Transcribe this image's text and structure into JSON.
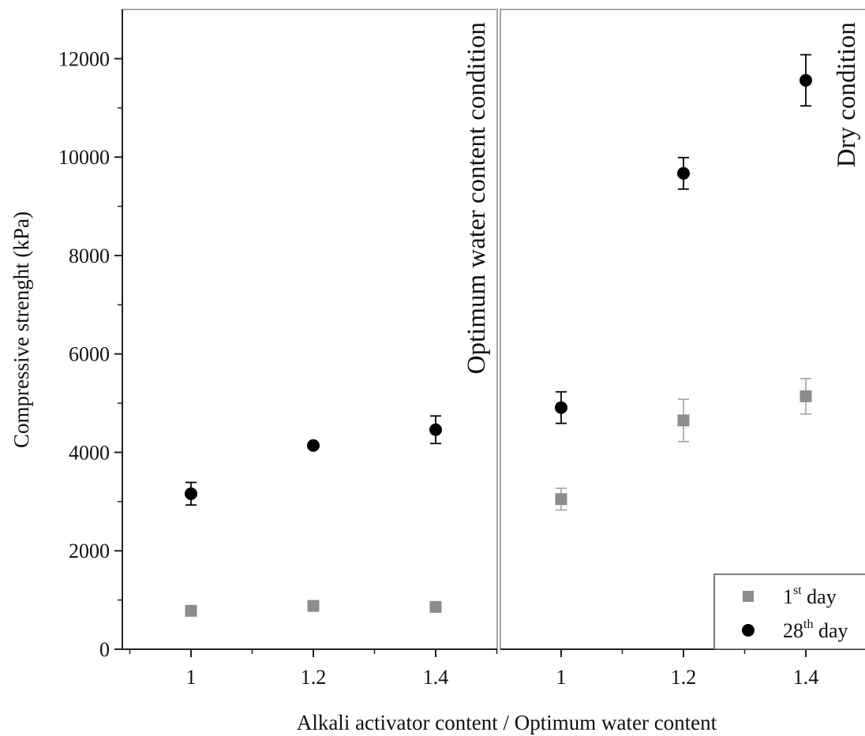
{
  "chart_data": {
    "type": "scatter",
    "title": "",
    "ylabel": "Compressive strenght (kPa)",
    "xlabel": "Alkali activator content / Optimum water content",
    "ylim": [
      0,
      13000
    ],
    "yticks": [
      0,
      2000,
      4000,
      6000,
      8000,
      10000,
      12000
    ],
    "grid": false,
    "legend_position": "bottom-right",
    "panels": [
      {
        "label": "Optimum water content condition",
        "categories": [
          "1",
          "1.2",
          "1.4"
        ],
        "series": [
          {
            "name": "1st day",
            "values": [
              780,
              880,
              860
            ],
            "errors": [
              0,
              0,
              0
            ]
          },
          {
            "name": "28th day",
            "values": [
              3160,
              4140,
              4460
            ],
            "errors": [
              230,
              0,
              280
            ]
          }
        ]
      },
      {
        "label": "Dry condition",
        "categories": [
          "1",
          "1.2",
          "1.4"
        ],
        "series": [
          {
            "name": "1st day",
            "values": [
              3050,
              4650,
              5140
            ],
            "errors": [
              220,
              430,
              360
            ]
          },
          {
            "name": "28th day",
            "values": [
              4910,
              9670,
              11560
            ],
            "errors": [
              320,
              320,
              520
            ]
          }
        ]
      }
    ],
    "legend": [
      {
        "base": "1",
        "sup": "st",
        "suffix": " day",
        "marker": "square",
        "color": "#8c8c8c"
      },
      {
        "base": "28",
        "sup": "th",
        "suffix": " day",
        "marker": "circle",
        "color": "#000000"
      }
    ],
    "colors": {
      "day1": "#8c8c8c",
      "day1_err": "#aaaaaa",
      "day28": "#000000",
      "axis": "#222222",
      "divider": "#888888"
    }
  }
}
